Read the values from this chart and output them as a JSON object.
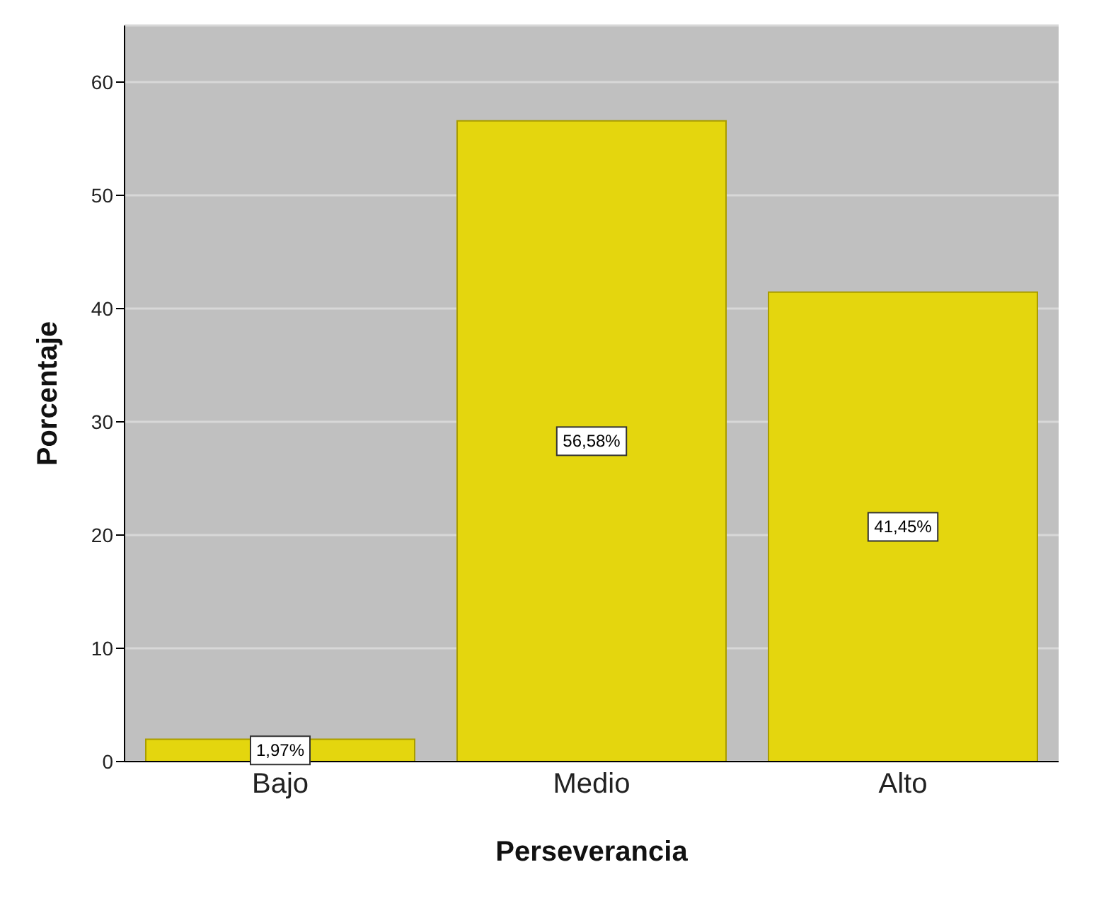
{
  "chart_data": {
    "type": "bar",
    "xlabel": "Perseverancia",
    "ylabel": "Porcentaje",
    "categories": [
      "Bajo",
      "Medio",
      "Alto"
    ],
    "values": [
      1.97,
      56.58,
      41.45
    ],
    "value_labels": [
      "1,97%",
      "56,58%",
      "41,45%"
    ],
    "color": "#e4d60e",
    "ylim": [
      0,
      65
    ],
    "yticks": [
      0,
      10,
      20,
      30,
      40,
      50,
      60
    ],
    "grid": "y"
  }
}
